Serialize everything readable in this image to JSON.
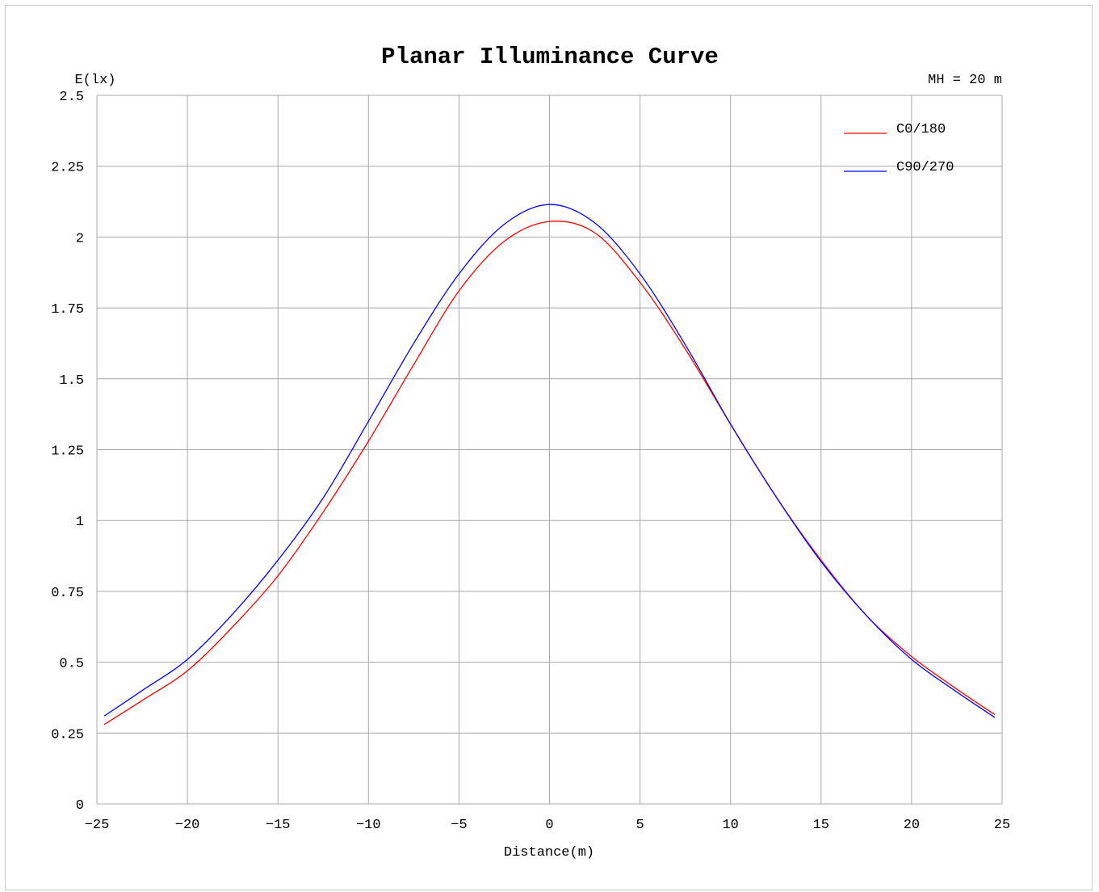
{
  "chart_data": {
    "type": "line",
    "title": "Planar Illuminance Curve",
    "ylabel": "E(lx)",
    "xlabel": "Distance(m)",
    "annotation": "MH = 20 m",
    "xlim": [
      -25,
      25
    ],
    "ylim": [
      0,
      2.5
    ],
    "x_ticks": [
      -25,
      -20,
      -15,
      -10,
      -5,
      0,
      5,
      10,
      15,
      20,
      25
    ],
    "y_ticks": [
      0,
      0.25,
      0.5,
      0.75,
      1,
      1.25,
      1.5,
      1.75,
      2,
      2.25,
      2.5
    ],
    "y_tick_labels": [
      "0",
      "0.25",
      "0.5",
      "0.75",
      "1",
      "1.25",
      "1.5",
      "1.75",
      "2",
      "2.25",
      "2.5"
    ],
    "grid": true,
    "legend_position": "top-right",
    "x": [
      -24.6,
      -22.5,
      -20,
      -17.5,
      -15,
      -12.5,
      -10,
      -7.5,
      -5,
      -2.5,
      0,
      2.5,
      5,
      7.5,
      10,
      12.5,
      15,
      17.5,
      20,
      22.5,
      24.6
    ],
    "series": [
      {
        "name": "C0/180",
        "color": "#ff0000",
        "values": [
          0.28,
          0.365,
          0.47,
          0.625,
          0.805,
          1.03,
          1.28,
          1.55,
          1.81,
          1.985,
          2.055,
          2.015,
          1.84,
          1.605,
          1.34,
          1.085,
          0.86,
          0.665,
          0.52,
          0.405,
          0.315
        ]
      },
      {
        "name": "C90/270",
        "color": "#0000ff",
        "values": [
          0.31,
          0.4,
          0.51,
          0.67,
          0.86,
          1.08,
          1.35,
          1.625,
          1.87,
          2.045,
          2.115,
          2.05,
          1.87,
          1.62,
          1.34,
          1.085,
          0.855,
          0.665,
          0.51,
          0.395,
          0.305
        ]
      }
    ]
  }
}
